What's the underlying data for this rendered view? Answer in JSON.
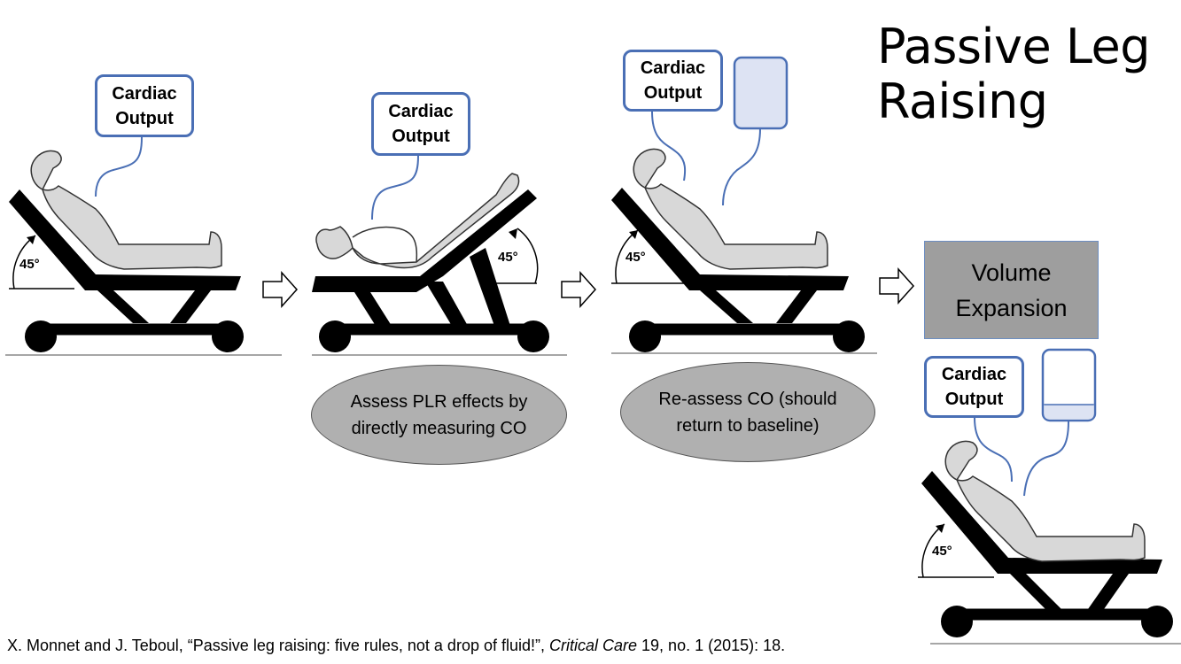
{
  "title": [
    "Passive Leg",
    "Raising"
  ],
  "cardiac_output_label": [
    "Cardiac",
    "Output"
  ],
  "angle_label": "45°",
  "step2_note": [
    "Assess PLR effects by",
    "directly measuring CO"
  ],
  "step3_note": [
    "Re-assess CO (should",
    "return to baseline)"
  ],
  "volume_expansion": [
    "Volume",
    "Expansion"
  ],
  "citation": {
    "authors": "X. Monnet and J. Teboul, “Passive leg raising: five rules, not a drop of fluid!”, ",
    "journal": "Critical Care",
    "details": " 19, no. 1 (2015): 18."
  },
  "colors": {
    "box_border": "#4a6fb5",
    "bag_fill": "#dde3f3",
    "ellipse_fill": "#b0b0b0",
    "volume_fill": "#9e9e9e"
  }
}
